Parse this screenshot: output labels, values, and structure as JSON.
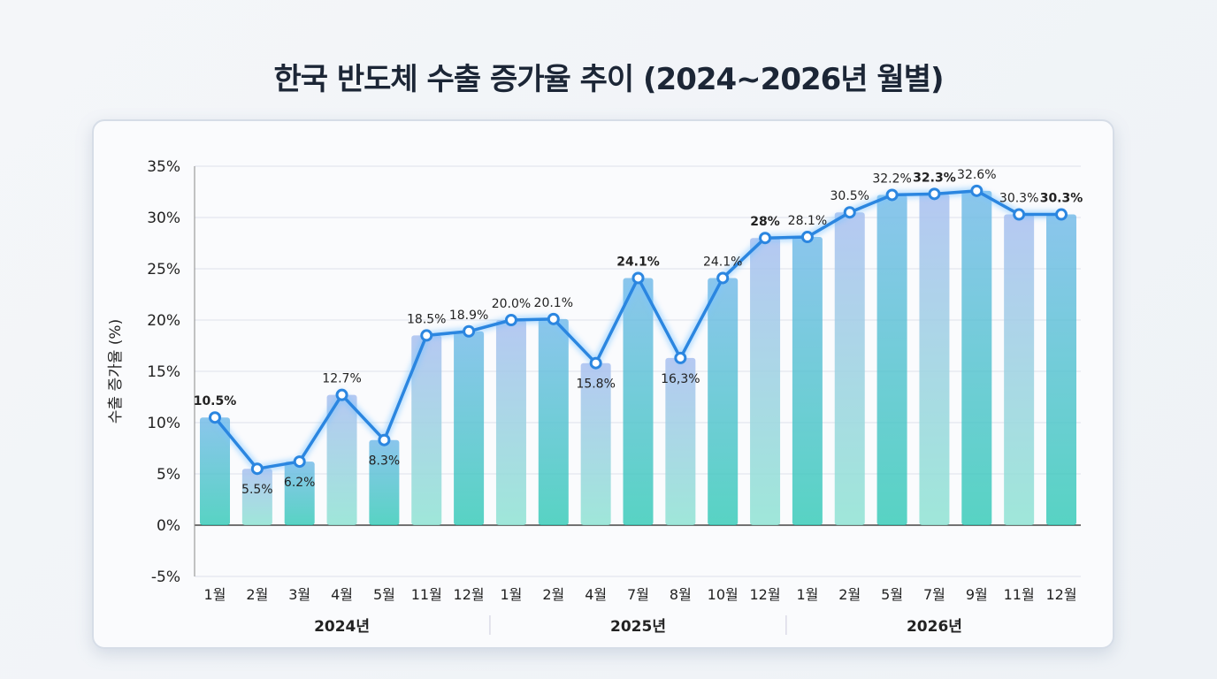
{
  "chart_data": {
    "type": "bar",
    "title": "한국 반도체 수출 증가율 추이 (2024~2026년 월별)",
    "ylabel": "수출 증가율 (%)",
    "xlabel": "",
    "ylim": [
      -5,
      35
    ],
    "yticks": [
      "-5%",
      "0%",
      "5%",
      "10%",
      "15%",
      "20%",
      "25%",
      "30%",
      "35%"
    ],
    "grid": true,
    "categories": [
      "1월",
      "2월",
      "3월",
      "4월",
      "5월",
      "11월",
      "12월",
      "1월",
      "2월",
      "4월",
      "7월",
      "8월",
      "10월",
      "12월",
      "1월",
      "2월",
      "5월",
      "7월",
      "9월",
      "11월",
      "12월"
    ],
    "year_groups": [
      {
        "label": "2024년",
        "count": 7
      },
      {
        "label": "2025년",
        "count": 7
      },
      {
        "label": "2026년",
        "count": 7
      }
    ],
    "values": [
      10.5,
      5.5,
      6.2,
      12.7,
      8.3,
      18.5,
      18.9,
      20.0,
      20.1,
      15.8,
      24.1,
      16.3,
      24.1,
      28,
      28.1,
      30.5,
      32.2,
      32.3,
      32.6,
      30.3,
      30.3
    ],
    "data_labels": [
      "10.5%",
      "5.5%",
      "6.2%",
      "12.7%",
      "8.3%",
      "18.5%",
      "18.9%",
      "20.0%",
      "20.1%",
      "15.8%",
      "24.1%",
      "16,3%",
      "24.1%",
      "28%",
      "28.1%",
      "30.5%",
      "32.2%",
      "32.3%",
      "32.6%",
      "30.3%",
      "30.3%"
    ],
    "series_style": "bars with overlaid line",
    "colors": {
      "line": "#2b86e0",
      "bar_top": "#a9c6f2",
      "bar_bottom": "#3fcfb8"
    }
  }
}
